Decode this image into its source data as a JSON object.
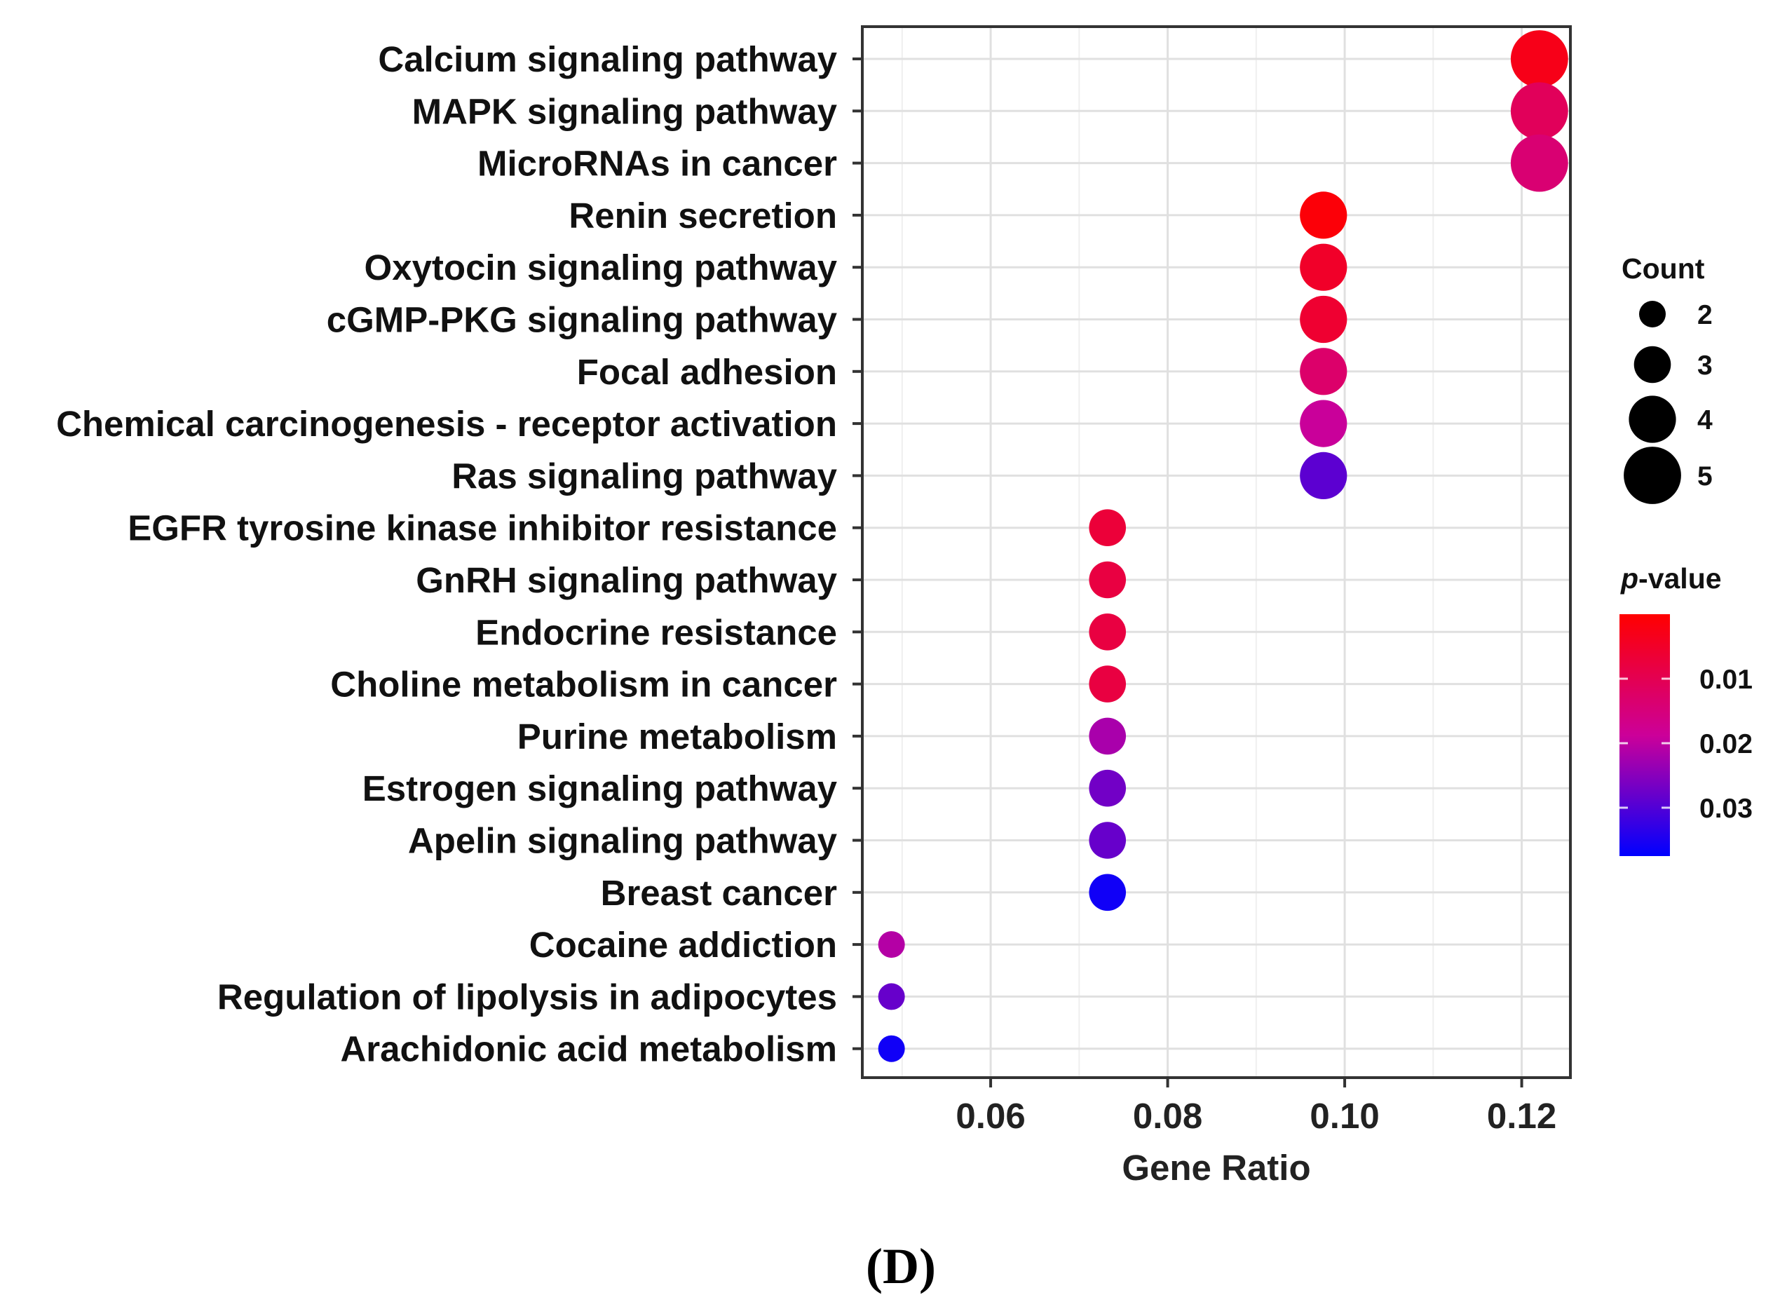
{
  "chart_data": {
    "type": "scatter",
    "subtype": "dot-plot",
    "xlabel": "Gene Ratio",
    "ylabel": "",
    "xlim": [
      0.0455,
      0.1255
    ],
    "xticks": [
      0.06,
      0.08,
      0.1,
      0.12
    ],
    "xtick_labels": [
      "0.06",
      "0.08",
      "0.10",
      "0.12"
    ],
    "grid": true,
    "points": [
      {
        "term": "Calcium signaling pathway",
        "gene_ratio": 0.122,
        "count": 5,
        "p_value": 0.003
      },
      {
        "term": "MAPK signaling pathway",
        "gene_ratio": 0.122,
        "count": 5,
        "p_value": 0.011
      },
      {
        "term": "MicroRNAs  in cancer",
        "gene_ratio": 0.122,
        "count": 5,
        "p_value": 0.014
      },
      {
        "term": "Renin secretion",
        "gene_ratio": 0.0976,
        "count": 4,
        "p_value": 0.001
      },
      {
        "term": "Oxytocin signaling pathway",
        "gene_ratio": 0.0976,
        "count": 4,
        "p_value": 0.005
      },
      {
        "term": "cGMP-PKG signaling pathway",
        "gene_ratio": 0.0976,
        "count": 4,
        "p_value": 0.006
      },
      {
        "term": "Focal adhesion",
        "gene_ratio": 0.0976,
        "count": 4,
        "p_value": 0.013
      },
      {
        "term": "Chemical carcinogenesis - receptor activation",
        "gene_ratio": 0.0976,
        "count": 4,
        "p_value": 0.019
      },
      {
        "term": "Ras signaling pathway",
        "gene_ratio": 0.0976,
        "count": 4,
        "p_value": 0.029
      },
      {
        "term": "EGFR tyrosine kinase inhibitor resistance",
        "gene_ratio": 0.0732,
        "count": 3,
        "p_value": 0.007
      },
      {
        "term": "GnRH signaling pathway",
        "gene_ratio": 0.0732,
        "count": 3,
        "p_value": 0.008
      },
      {
        "term": "Endocrine resistance",
        "gene_ratio": 0.0732,
        "count": 3,
        "p_value": 0.008
      },
      {
        "term": "Choline metabolism in cancer",
        "gene_ratio": 0.0732,
        "count": 3,
        "p_value": 0.008
      },
      {
        "term": "Purine metabolism",
        "gene_ratio": 0.0732,
        "count": 3,
        "p_value": 0.022
      },
      {
        "term": "Estrogen signaling pathway",
        "gene_ratio": 0.0732,
        "count": 3,
        "p_value": 0.027
      },
      {
        "term": "Apelin signaling pathway",
        "gene_ratio": 0.0732,
        "count": 3,
        "p_value": 0.028
      },
      {
        "term": "Breast cancer",
        "gene_ratio": 0.0732,
        "count": 3,
        "p_value": 0.036
      },
      {
        "term": "Cocaine addiction",
        "gene_ratio": 0.0488,
        "count": 2,
        "p_value": 0.021
      },
      {
        "term": "Regulation of lipolysis in adipocytes",
        "gene_ratio": 0.0488,
        "count": 2,
        "p_value": 0.028
      },
      {
        "term": "Arachidonic acid metabolism",
        "gene_ratio": 0.0488,
        "count": 2,
        "p_value": 0.036
      }
    ],
    "size_legend": {
      "title": "Count",
      "values": [
        2,
        3,
        4,
        5
      ],
      "labels": [
        "2",
        "3",
        "4",
        "5"
      ]
    },
    "color_legend": {
      "title_italic": "p",
      "title_rest": "-value",
      "range": [
        0.0,
        0.0375
      ],
      "ticks": [
        0.01,
        0.02,
        0.03
      ],
      "tick_labels": [
        "0.01",
        "0.02",
        "0.03"
      ],
      "low_color": "#ff0000",
      "mid_color": "#cc0099",
      "high_color": "#0000ff"
    }
  },
  "panel_label": "(D)"
}
